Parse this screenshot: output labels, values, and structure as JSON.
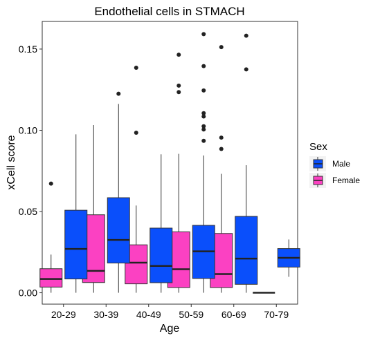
{
  "chart_data": {
    "type": "boxplot",
    "title": "Endothelial cells in STMACH",
    "xlabel": "Age",
    "ylabel": "xCell score",
    "ylim": [
      -0.007,
      0.167
    ],
    "yticks": [
      0.0,
      0.05,
      0.1,
      0.15
    ],
    "ytick_labels": [
      "0.00",
      "0.05",
      "0.10",
      "0.15"
    ],
    "categories": [
      "20-29",
      "30-39",
      "40-49",
      "50-59",
      "60-69",
      "70-79"
    ],
    "legend": {
      "title": "Sex",
      "position": "right",
      "entries": [
        {
          "label": "Male",
          "color": "#0a4ffb"
        },
        {
          "label": "Female",
          "color": "#fb41c2"
        }
      ]
    },
    "series": [
      {
        "name": "Female",
        "color": "#fb41c2",
        "boxes": [
          {
            "category": "20-29",
            "min": 0.0,
            "q1": 0.0035,
            "median": 0.0085,
            "q3": 0.0148,
            "max": 0.0235,
            "outliers": [
              0.0672
            ]
          },
          {
            "category": "30-39",
            "min": 0.0,
            "q1": 0.0063,
            "median": 0.0135,
            "q3": 0.048,
            "max": 0.1032,
            "outliers": []
          },
          {
            "category": "40-49",
            "min": 0.0,
            "q1": 0.0055,
            "median": 0.0185,
            "q3": 0.0295,
            "max": 0.0537,
            "outliers": [
              0.0985,
              0.1385
            ]
          },
          {
            "category": "50-59",
            "min": 0.0,
            "q1": 0.0032,
            "median": 0.0145,
            "q3": 0.0375,
            "max": 0.0855,
            "outliers": [
              0.1235,
              0.1275,
              0.1465
            ]
          },
          {
            "category": "60-69",
            "min": 0.0,
            "q1": 0.0032,
            "median": 0.0115,
            "q3": 0.0365,
            "max": 0.0732,
            "outliers": [
              0.0885,
              0.0955,
              0.1512
            ]
          },
          {
            "category": "70-79",
            "min": 0.0,
            "q1": 0.0,
            "median": 0.0,
            "q3": 0.0,
            "max": 0.0,
            "outliers": []
          }
        ]
      },
      {
        "name": "Male",
        "color": "#0a4ffb",
        "boxes": [
          {
            "category": "20-29",
            "min": 0.0,
            "q1": 0.0085,
            "median": 0.027,
            "q3": 0.0508,
            "max": 0.0975,
            "outliers": []
          },
          {
            "category": "30-39",
            "min": 0.0,
            "q1": 0.0183,
            "median": 0.0325,
            "q3": 0.0585,
            "max": 0.1162,
            "outliers": [
              0.1225
            ]
          },
          {
            "category": "40-49",
            "min": 0.0,
            "q1": 0.0062,
            "median": 0.0165,
            "q3": 0.0398,
            "max": 0.0852,
            "outliers": []
          },
          {
            "category": "50-59",
            "min": 0.0,
            "q1": 0.0088,
            "median": 0.0255,
            "q3": 0.0415,
            "max": 0.0845,
            "outliers": [
              0.0935,
              0.1005,
              0.1025,
              0.1085,
              0.1105,
              0.1245,
              0.1395,
              0.1592
            ]
          },
          {
            "category": "60-69",
            "min": 0.0,
            "q1": 0.0052,
            "median": 0.021,
            "q3": 0.047,
            "max": 0.0785,
            "outliers": [
              0.1375,
              0.1582
            ]
          },
          {
            "category": "70-79",
            "min": 0.0098,
            "q1": 0.0158,
            "median": 0.0215,
            "q3": 0.0272,
            "max": 0.0328,
            "outliers": []
          }
        ]
      }
    ]
  }
}
